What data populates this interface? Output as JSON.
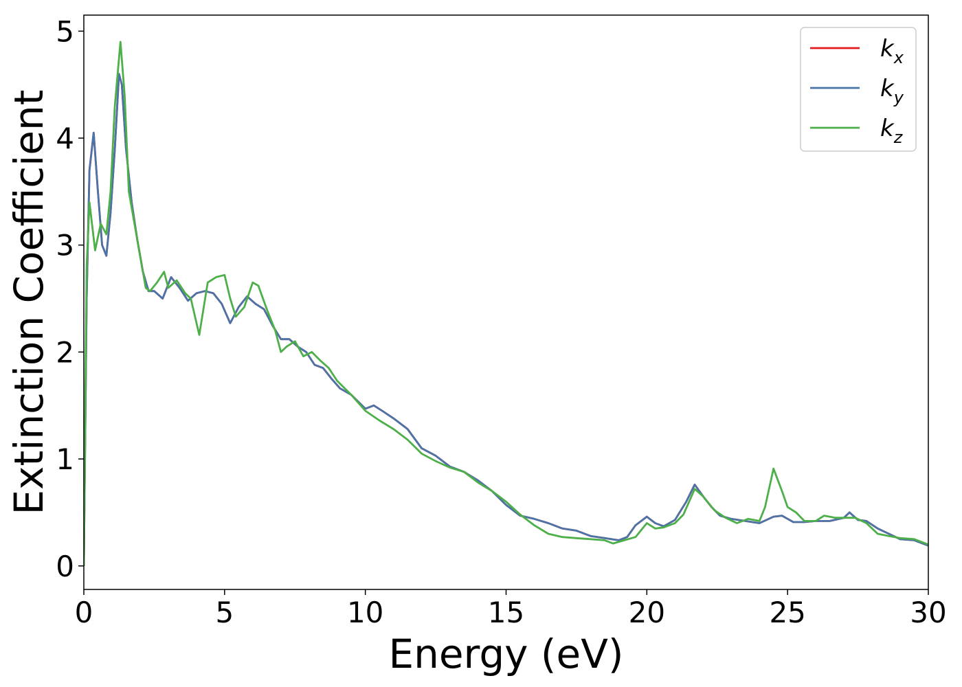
{
  "chart_data": {
    "type": "line",
    "title": "",
    "xlabel": "Energy (eV)",
    "ylabel": "Extinction Coefficient",
    "xlim": [
      0,
      30
    ],
    "ylim": [
      -0.22,
      5.15
    ],
    "xticks": [
      0,
      5,
      10,
      15,
      20,
      25,
      30
    ],
    "yticks": [
      0,
      1,
      2,
      3,
      4,
      5
    ],
    "grid": false,
    "legend_position": "top-right",
    "series": [
      {
        "name": "k_x",
        "legend_main": "k",
        "legend_sub": "x",
        "color": "#e41a1c",
        "x": [
          0,
          0.1,
          0.2,
          0.35,
          0.5,
          0.65,
          0.8,
          0.95,
          1.1,
          1.25,
          1.35,
          1.5,
          1.7,
          1.9,
          2.1,
          2.3,
          2.5,
          2.8,
          3.1,
          3.4,
          3.7,
          4.0,
          4.3,
          4.6,
          4.9,
          5.2,
          5.5,
          5.8,
          6.1,
          6.4,
          6.7,
          7.0,
          7.3,
          7.6,
          7.9,
          8.2,
          8.5,
          8.8,
          9.1,
          9.5,
          10.0,
          10.3,
          10.6,
          11.0,
          11.5,
          12.0,
          12.5,
          13.0,
          13.5,
          14.0,
          14.5,
          15.0,
          15.5,
          16.0,
          16.5,
          17.0,
          17.5,
          18.0,
          18.5,
          19.0,
          19.3,
          19.6,
          20.0,
          20.3,
          20.6,
          21.0,
          21.4,
          21.7,
          22.0,
          22.3,
          22.6,
          23.0,
          23.5,
          24.0,
          24.5,
          24.8,
          25.2,
          25.6,
          26.0,
          26.5,
          27.0,
          27.2,
          27.5,
          27.8,
          28.2,
          28.6,
          29.0,
          29.5,
          30.0
        ],
        "y": [
          0,
          2.5,
          3.7,
          4.05,
          3.5,
          3.0,
          2.9,
          3.3,
          3.9,
          4.6,
          4.5,
          3.9,
          3.4,
          3.05,
          2.75,
          2.57,
          2.57,
          2.5,
          2.7,
          2.6,
          2.48,
          2.55,
          2.57,
          2.55,
          2.45,
          2.27,
          2.42,
          2.52,
          2.45,
          2.4,
          2.25,
          2.12,
          2.12,
          2.05,
          2.0,
          1.88,
          1.85,
          1.75,
          1.66,
          1.6,
          1.47,
          1.5,
          1.45,
          1.38,
          1.28,
          1.1,
          1.03,
          0.93,
          0.88,
          0.8,
          0.7,
          0.57,
          0.47,
          0.44,
          0.4,
          0.35,
          0.33,
          0.28,
          0.26,
          0.24,
          0.27,
          0.38,
          0.46,
          0.4,
          0.37,
          0.43,
          0.6,
          0.76,
          0.65,
          0.55,
          0.47,
          0.44,
          0.42,
          0.4,
          0.46,
          0.47,
          0.41,
          0.41,
          0.42,
          0.42,
          0.45,
          0.5,
          0.43,
          0.42,
          0.35,
          0.3,
          0.25,
          0.24,
          0.19
        ]
      },
      {
        "name": "k_y",
        "legend_main": "k",
        "legend_sub": "y",
        "color": "#4a74a8",
        "x": [
          0,
          0.1,
          0.2,
          0.35,
          0.5,
          0.65,
          0.8,
          0.95,
          1.1,
          1.25,
          1.35,
          1.5,
          1.7,
          1.9,
          2.1,
          2.3,
          2.5,
          2.8,
          3.1,
          3.4,
          3.7,
          4.0,
          4.3,
          4.6,
          4.9,
          5.2,
          5.5,
          5.8,
          6.1,
          6.4,
          6.7,
          7.0,
          7.3,
          7.6,
          7.9,
          8.2,
          8.5,
          8.8,
          9.1,
          9.5,
          10.0,
          10.3,
          10.6,
          11.0,
          11.5,
          12.0,
          12.5,
          13.0,
          13.5,
          14.0,
          14.5,
          15.0,
          15.5,
          16.0,
          16.5,
          17.0,
          17.5,
          18.0,
          18.5,
          19.0,
          19.3,
          19.6,
          20.0,
          20.3,
          20.6,
          21.0,
          21.4,
          21.7,
          22.0,
          22.3,
          22.6,
          23.0,
          23.5,
          24.0,
          24.5,
          24.8,
          25.2,
          25.6,
          26.0,
          26.5,
          27.0,
          27.2,
          27.5,
          27.8,
          28.2,
          28.6,
          29.0,
          29.5,
          30.0
        ],
        "y": [
          0,
          2.5,
          3.7,
          4.05,
          3.5,
          3.0,
          2.9,
          3.3,
          3.9,
          4.6,
          4.5,
          3.9,
          3.4,
          3.05,
          2.75,
          2.57,
          2.57,
          2.5,
          2.7,
          2.6,
          2.48,
          2.55,
          2.57,
          2.55,
          2.45,
          2.27,
          2.42,
          2.52,
          2.45,
          2.4,
          2.25,
          2.12,
          2.12,
          2.05,
          2.0,
          1.88,
          1.85,
          1.75,
          1.66,
          1.6,
          1.47,
          1.5,
          1.45,
          1.38,
          1.28,
          1.1,
          1.03,
          0.93,
          0.88,
          0.8,
          0.7,
          0.57,
          0.47,
          0.44,
          0.4,
          0.35,
          0.33,
          0.28,
          0.26,
          0.24,
          0.27,
          0.38,
          0.46,
          0.4,
          0.37,
          0.43,
          0.6,
          0.76,
          0.65,
          0.55,
          0.47,
          0.44,
          0.42,
          0.4,
          0.46,
          0.47,
          0.41,
          0.41,
          0.42,
          0.42,
          0.45,
          0.5,
          0.43,
          0.42,
          0.35,
          0.3,
          0.25,
          0.24,
          0.19
        ]
      },
      {
        "name": "k_z",
        "legend_main": "k",
        "legend_sub": "z",
        "color": "#4daf4a",
        "x": [
          0,
          0.1,
          0.2,
          0.4,
          0.6,
          0.8,
          0.95,
          1.1,
          1.3,
          1.45,
          1.6,
          1.8,
          2.0,
          2.2,
          2.35,
          2.6,
          2.85,
          3.0,
          3.3,
          3.6,
          3.8,
          4.1,
          4.4,
          4.7,
          5.0,
          5.2,
          5.4,
          5.7,
          6.0,
          6.2,
          6.5,
          6.8,
          7.0,
          7.2,
          7.5,
          7.8,
          8.1,
          8.4,
          8.7,
          9.0,
          9.5,
          10.0,
          10.5,
          11.0,
          11.5,
          12.0,
          12.5,
          13.0,
          13.5,
          14.0,
          14.5,
          15.0,
          15.5,
          16.0,
          16.5,
          17.0,
          17.5,
          18.0,
          18.5,
          18.8,
          19.2,
          19.6,
          20.0,
          20.3,
          20.6,
          21.0,
          21.3,
          21.7,
          22.0,
          22.4,
          22.8,
          23.2,
          23.6,
          24.0,
          24.2,
          24.5,
          24.8,
          25.0,
          25.3,
          25.6,
          26.0,
          26.3,
          26.7,
          27.0,
          27.4,
          27.8,
          28.2,
          28.6,
          29.0,
          29.5,
          30.0
        ],
        "y": [
          0,
          2.8,
          3.4,
          2.95,
          3.2,
          3.1,
          3.5,
          4.3,
          4.9,
          4.4,
          3.5,
          3.2,
          2.9,
          2.6,
          2.57,
          2.65,
          2.75,
          2.6,
          2.67,
          2.55,
          2.5,
          2.16,
          2.65,
          2.7,
          2.72,
          2.5,
          2.33,
          2.42,
          2.65,
          2.62,
          2.4,
          2.2,
          2.0,
          2.05,
          2.1,
          1.96,
          2.0,
          1.92,
          1.85,
          1.73,
          1.6,
          1.45,
          1.36,
          1.28,
          1.18,
          1.05,
          0.98,
          0.92,
          0.88,
          0.78,
          0.7,
          0.6,
          0.48,
          0.38,
          0.3,
          0.27,
          0.26,
          0.25,
          0.24,
          0.21,
          0.24,
          0.27,
          0.4,
          0.35,
          0.36,
          0.4,
          0.48,
          0.72,
          0.65,
          0.52,
          0.45,
          0.4,
          0.44,
          0.42,
          0.55,
          0.91,
          0.7,
          0.55,
          0.5,
          0.42,
          0.42,
          0.47,
          0.45,
          0.45,
          0.45,
          0.4,
          0.3,
          0.28,
          0.26,
          0.25,
          0.2
        ]
      }
    ]
  }
}
